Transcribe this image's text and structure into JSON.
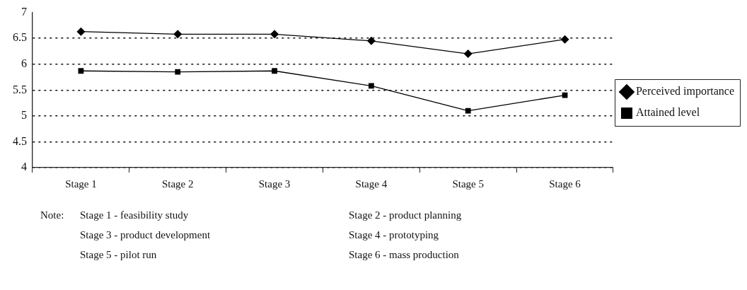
{
  "chart_data": {
    "type": "line",
    "categories": [
      "Stage 1",
      "Stage 2",
      "Stage 3",
      "Stage 4",
      "Stage 5",
      "Stage 6"
    ],
    "series": [
      {
        "name": "Perceived importance",
        "color": "#000000",
        "marker": "diamond",
        "values": [
          6.63,
          6.58,
          6.58,
          6.45,
          6.2,
          6.48
        ]
      },
      {
        "name": "Attained level",
        "color": "#000000",
        "marker": "square",
        "values": [
          5.87,
          5.85,
          5.87,
          5.58,
          5.1,
          5.4
        ]
      }
    ],
    "ylim": [
      4,
      7
    ],
    "yticks": [
      4,
      {
        "value": 4.5,
        "label": "4.5"
      },
      5,
      {
        "value": 5.5,
        "label": "5.5"
      },
      6,
      {
        "value": 6.5,
        "label": "6.5"
      },
      7
    ],
    "grid": "y",
    "legend": "right",
    "line_style": "solid",
    "annotations": [
      "Note:",
      "Stage 1 - feasibility study",
      "Stage 2 - product planning",
      "Stage 3 - product development",
      "Stage 4 - prototyping",
      "Stage 5 - pilot run",
      "Stage 6 - mass production"
    ]
  }
}
